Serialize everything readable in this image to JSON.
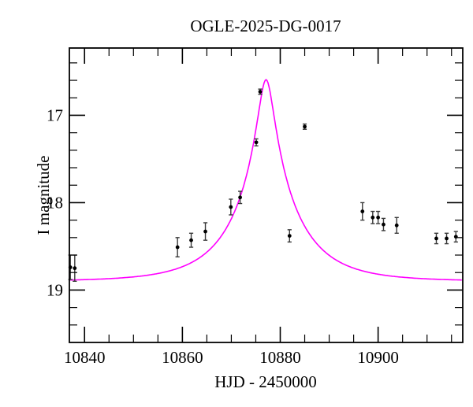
{
  "chart_data": {
    "type": "scatter",
    "title": "OGLE-2025-DG-0017",
    "xlabel": "HJD - 2450000",
    "ylabel": "I magnitude",
    "xlim": [
      10836.9,
      10917.3
    ],
    "ylim_top": 16.23,
    "ylim_bottom": 19.6,
    "y_axis_inverted_magnitude": true,
    "grid": false,
    "x_major_ticks": [
      10840,
      10860,
      10880,
      10900
    ],
    "x_minor_step": 5,
    "y_major_ticks": [
      17,
      18,
      19
    ],
    "y_minor_step": 0.2,
    "point_color": "#000000",
    "errorbar_color": "#3a3a3a",
    "model_color": "#ff00ff",
    "points": [
      {
        "hjd": 10837.1,
        "mag": 18.74,
        "err": 0.14
      },
      {
        "hjd": 10838.0,
        "mag": 18.75,
        "err": 0.15
      },
      {
        "hjd": 10859.0,
        "mag": 18.51,
        "err": 0.11
      },
      {
        "hjd": 10861.8,
        "mag": 18.43,
        "err": 0.08
      },
      {
        "hjd": 10864.7,
        "mag": 18.33,
        "err": 0.1
      },
      {
        "hjd": 10869.9,
        "mag": 18.05,
        "err": 0.09
      },
      {
        "hjd": 10871.8,
        "mag": 17.94,
        "err": 0.07
      },
      {
        "hjd": 10875.1,
        "mag": 17.31,
        "err": 0.04
      },
      {
        "hjd": 10875.9,
        "mag": 16.73,
        "err": 0.03
      },
      {
        "hjd": 10881.9,
        "mag": 18.38,
        "err": 0.07
      },
      {
        "hjd": 10885.0,
        "mag": 17.13,
        "err": 0.03
      },
      {
        "hjd": 10896.8,
        "mag": 18.1,
        "err": 0.1
      },
      {
        "hjd": 10898.9,
        "mag": 18.17,
        "err": 0.07
      },
      {
        "hjd": 10900.0,
        "mag": 18.17,
        "err": 0.07
      },
      {
        "hjd": 10901.1,
        "mag": 18.25,
        "err": 0.07
      },
      {
        "hjd": 10903.8,
        "mag": 18.26,
        "err": 0.09
      },
      {
        "hjd": 10911.9,
        "mag": 18.41,
        "err": 0.06
      },
      {
        "hjd": 10914.0,
        "mag": 18.41,
        "err": 0.06
      },
      {
        "hjd": 10915.9,
        "mag": 18.39,
        "err": 0.06
      }
    ],
    "model": {
      "type": "paczynski-microlensing",
      "t0": 10877.1,
      "tE": 12.5,
      "u0": 0.12,
      "baseline_mag": 18.9,
      "peak_mag": 16.59
    }
  }
}
